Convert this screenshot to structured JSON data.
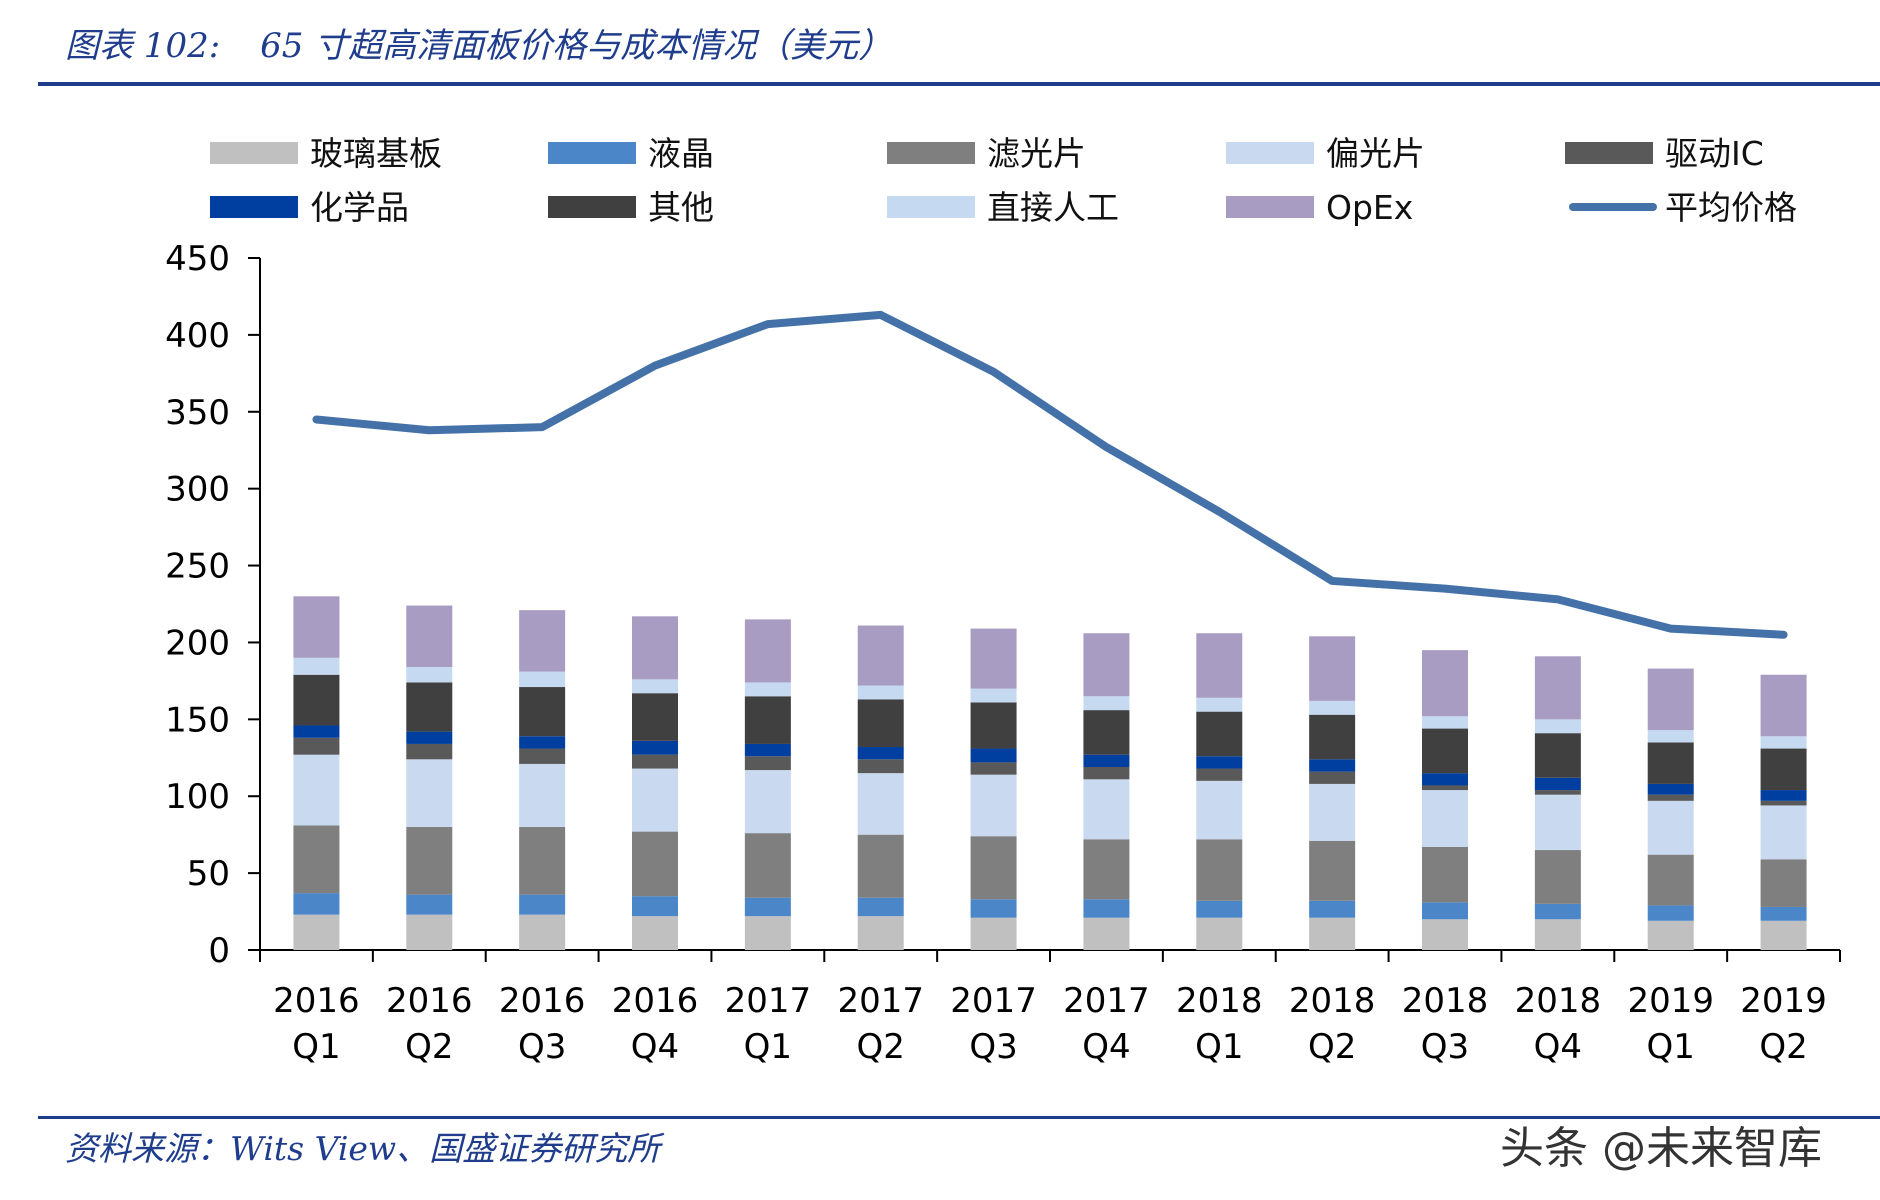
{
  "header": {
    "figure_label": "图表 102:",
    "figure_title": "65 寸超高清面板价格与成本情况（美元）"
  },
  "footer": {
    "source": "资料来源：Wits View、国盛证券研究所",
    "watermark": "头条 @未来智库"
  },
  "chart_data": {
    "type": "bar",
    "stacked": true,
    "title": "65 寸超高清面板价格与成本情况（美元）",
    "xlabel": "",
    "ylabel": "",
    "ylim": [
      0,
      450
    ],
    "yticks": [
      0,
      50,
      100,
      150,
      200,
      250,
      300,
      350,
      400,
      450
    ],
    "categories": [
      [
        "2016",
        "Q1"
      ],
      [
        "2016",
        "Q2"
      ],
      [
        "2016",
        "Q3"
      ],
      [
        "2016",
        "Q4"
      ],
      [
        "2017",
        "Q1"
      ],
      [
        "2017",
        "Q2"
      ],
      [
        "2017",
        "Q3"
      ],
      [
        "2017",
        "Q4"
      ],
      [
        "2018",
        "Q1"
      ],
      [
        "2018",
        "Q2"
      ],
      [
        "2018",
        "Q3"
      ],
      [
        "2018",
        "Q4"
      ],
      [
        "2019",
        "Q1"
      ],
      [
        "2019",
        "Q2"
      ]
    ],
    "series": [
      {
        "name": "玻璃基板",
        "color": "#c0c0c0",
        "values": [
          23,
          23,
          23,
          22,
          22,
          22,
          21,
          21,
          21,
          21,
          20,
          20,
          19,
          19
        ]
      },
      {
        "name": "液晶",
        "color": "#4a86c8",
        "values": [
          14,
          13,
          13,
          13,
          12,
          12,
          12,
          12,
          11,
          11,
          11,
          10,
          10,
          9
        ]
      },
      {
        "name": "滤光片",
        "color": "#7f7f7f",
        "values": [
          44,
          44,
          44,
          42,
          42,
          41,
          41,
          39,
          40,
          39,
          36,
          35,
          33,
          31
        ]
      },
      {
        "name": "偏光片",
        "color": "#c9daf0",
        "values": [
          46,
          44,
          41,
          41,
          41,
          40,
          40,
          39,
          38,
          37,
          37,
          36,
          35,
          35
        ]
      },
      {
        "name": "驱动IC",
        "color": "#595959",
        "values": [
          11,
          10,
          10,
          9,
          9,
          9,
          8,
          8,
          8,
          8,
          3,
          3,
          4,
          3
        ]
      },
      {
        "name": "化学品",
        "color": "#003fa0",
        "values": [
          8,
          8,
          8,
          9,
          8,
          8,
          9,
          8,
          8,
          8,
          8,
          8,
          7,
          7
        ]
      },
      {
        "name": "其他",
        "color": "#404040",
        "values": [
          33,
          32,
          32,
          31,
          31,
          31,
          30,
          29,
          29,
          29,
          29,
          29,
          27,
          27
        ]
      },
      {
        "name": "直接人工",
        "color": "#c5d9f0",
        "values": [
          11,
          10,
          10,
          9,
          9,
          9,
          9,
          9,
          9,
          9,
          8,
          9,
          8,
          8
        ]
      },
      {
        "name": "OpEx",
        "color": "#a99cc2",
        "values": [
          40,
          40,
          40,
          41,
          41,
          39,
          39,
          41,
          42,
          42,
          43,
          41,
          40,
          40
        ]
      }
    ],
    "line_series": {
      "name": "平均价格",
      "color": "#4472a8",
      "values": [
        345,
        338,
        340,
        380,
        407,
        413,
        376,
        327,
        285,
        240,
        235,
        228,
        209,
        205
      ]
    },
    "legend": {
      "placement": "top",
      "rows": [
        [
          "玻璃基板",
          "液晶",
          "滤光片",
          "偏光片",
          "驱动IC"
        ],
        [
          "化学品",
          "其他",
          "直接人工",
          "OpEx",
          "平均价格"
        ]
      ]
    }
  }
}
